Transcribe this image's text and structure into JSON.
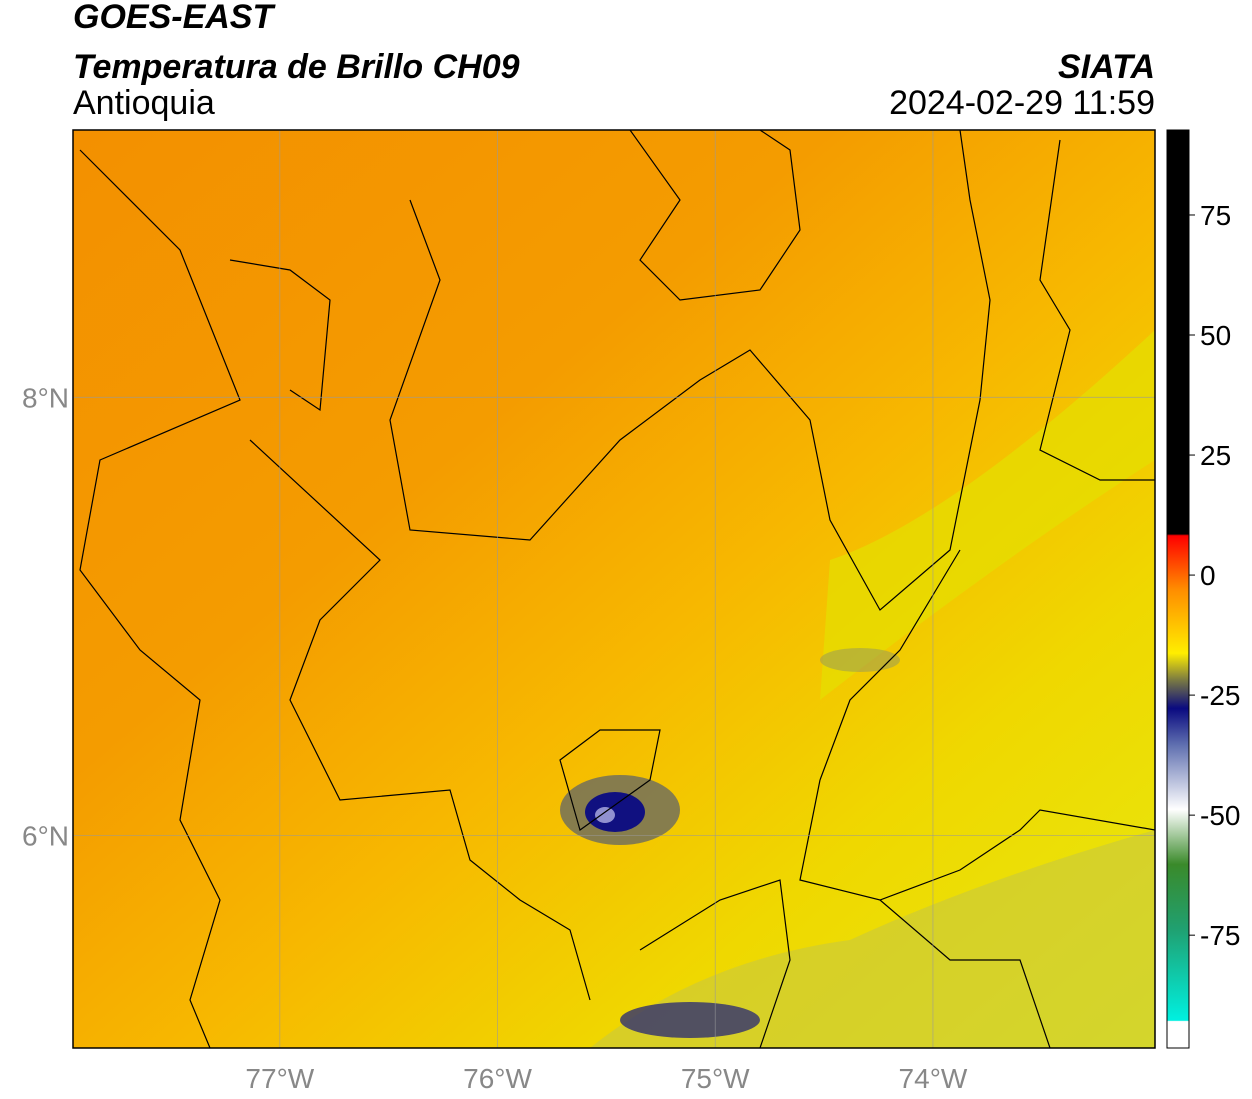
{
  "map_data": {
    "title": "GOES-EAST",
    "subtitle": "Temperatura de Brillo CH09",
    "region": "Antioquia",
    "source": "SIATA",
    "datetime": "2024-02-29 11:59",
    "xlim": [
      -77.95,
      -72.98
    ],
    "ylim": [
      5.03,
      9.22
    ],
    "xticks": [
      {
        "value": -77,
        "label": "77°W"
      },
      {
        "value": -76,
        "label": "76°W"
      },
      {
        "value": -75,
        "label": "75°W"
      },
      {
        "value": -74,
        "label": "74°W"
      }
    ],
    "yticks": [
      {
        "value": 8,
        "label": "8°N"
      },
      {
        "value": 6,
        "label": "6°N"
      }
    ],
    "colorbar": {
      "lim": [
        -98.5,
        92.7
      ],
      "ticks": [
        75,
        50,
        25,
        0,
        -25,
        -50,
        -75
      ]
    },
    "grid": true
  }
}
